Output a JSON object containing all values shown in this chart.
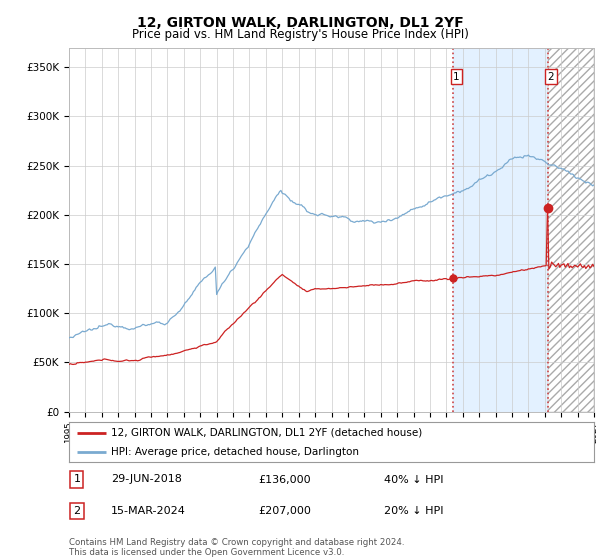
{
  "title": "12, GIRTON WALK, DARLINGTON, DL1 2YF",
  "subtitle": "Price paid vs. HM Land Registry's House Price Index (HPI)",
  "ylim": [
    0,
    370000
  ],
  "yticks": [
    0,
    50000,
    100000,
    150000,
    200000,
    250000,
    300000,
    350000
  ],
  "ytick_labels": [
    "£0",
    "£50K",
    "£100K",
    "£150K",
    "£200K",
    "£250K",
    "£300K",
    "£350K"
  ],
  "hpi_color": "#7aaad0",
  "price_color": "#cc2222",
  "marker1_year": 2018,
  "marker1_month": 6,
  "marker2_year": 2024,
  "marker2_month": 3,
  "marker1_price": 136000,
  "marker2_price": 207000,
  "legend_label1": "12, GIRTON WALK, DARLINGTON, DL1 2YF (detached house)",
  "legend_label2": "HPI: Average price, detached house, Darlington",
  "footer": "Contains HM Land Registry data © Crown copyright and database right 2024.\nThis data is licensed under the Open Government Licence v3.0.",
  "bg_color": "#ffffff",
  "grid_color": "#cccccc",
  "title_fontsize": 10,
  "subtitle_fontsize": 8.5,
  "tick_fontsize": 7.5,
  "legend_fontsize": 7.5,
  "annotation_fontsize": 8
}
